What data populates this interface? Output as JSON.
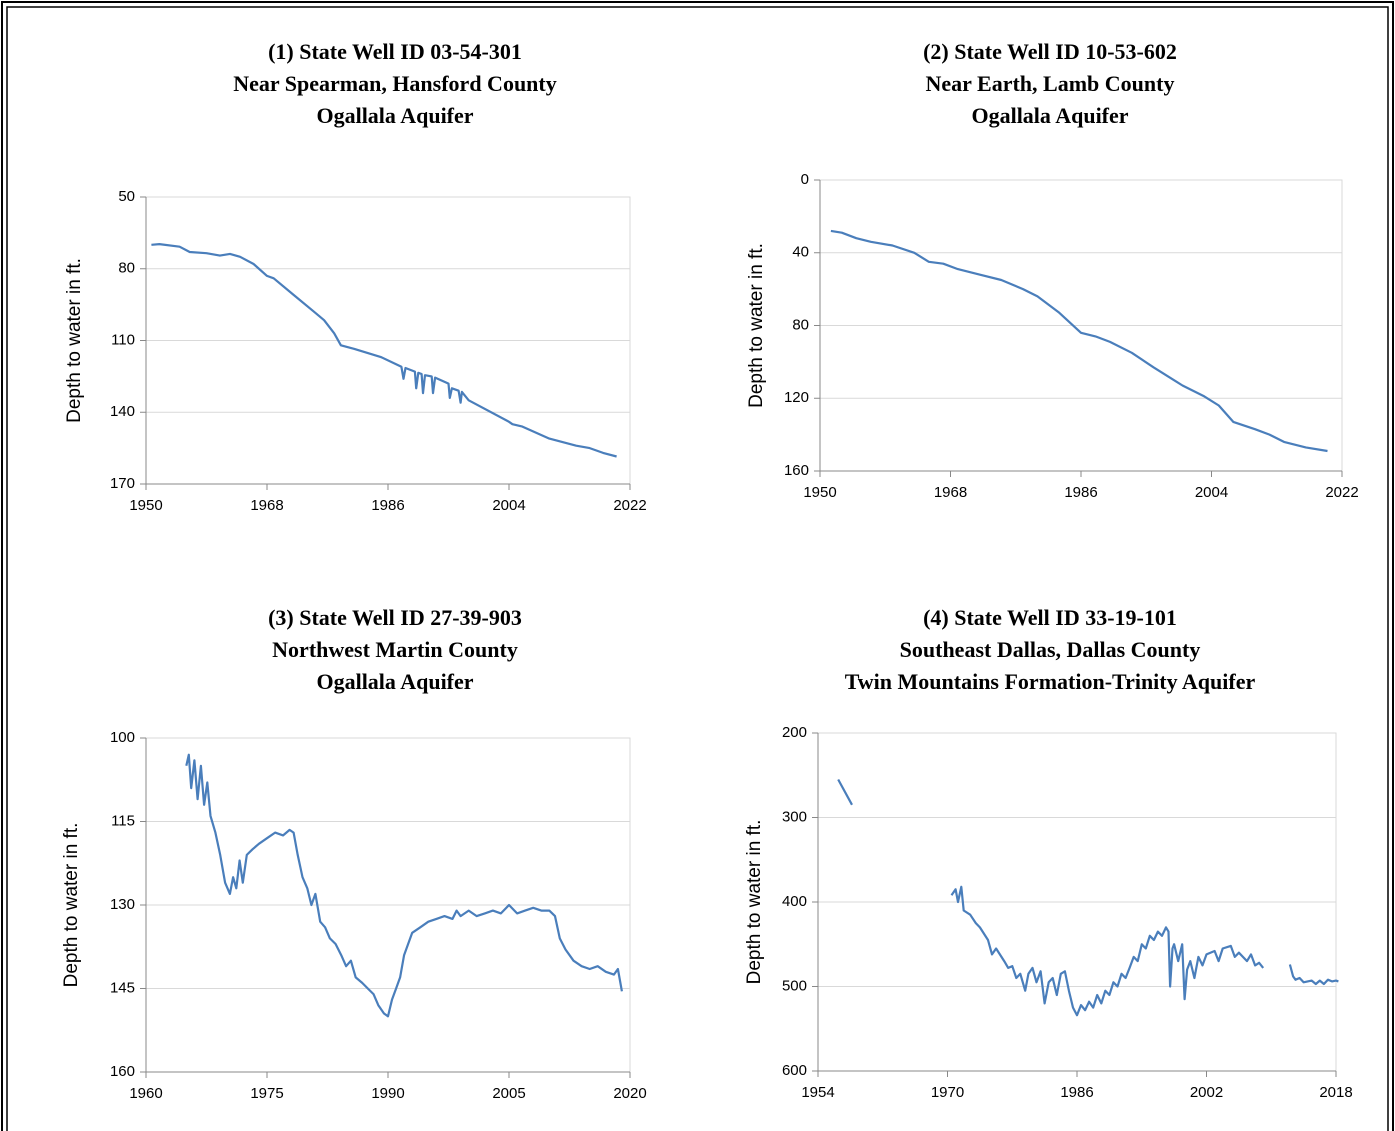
{
  "chart_data": [
    {
      "type": "line",
      "title": [
        "(1) State Well ID 03-54-301",
        "Near Spearman, Hansford County",
        "Ogallala Aquifer"
      ],
      "y_label": "Depth to water in ft.",
      "invert_y": true,
      "grid": true,
      "color": "#4a7ebb",
      "xlim": [
        1950,
        2022
      ],
      "xticks": [
        1950,
        1968,
        1986,
        2004,
        2022
      ],
      "ylim": [
        50,
        170
      ],
      "yticks": [
        50,
        80,
        110,
        140,
        170
      ],
      "x": [
        1950.8,
        1952,
        1955,
        1956.5,
        1959,
        1961,
        1962.5,
        1964,
        1966,
        1968,
        1969,
        1972,
        1975,
        1976.5,
        1978,
        1979,
        1981,
        1985,
        1988,
        1988.3,
        1988.6,
        1990,
        1990.2,
        1990.5,
        1991,
        1991.2,
        1991.5,
        1992.5,
        1992.7,
        1993,
        1995,
        1995.2,
        1995.5,
        1996.5,
        1996.8,
        1997,
        1998,
        2004,
        2004.5,
        2006,
        2010,
        2014,
        2016,
        2018,
        2020
      ],
      "values": [
        70,
        69.7,
        70.8,
        73,
        73.5,
        74.5,
        73.8,
        75,
        78,
        83,
        84,
        91,
        98,
        101.5,
        107,
        112,
        113.5,
        117,
        121,
        126,
        121.5,
        123,
        130,
        123.5,
        124,
        132,
        124.5,
        125,
        132,
        125.5,
        128,
        134,
        130,
        131,
        136,
        131.5,
        135,
        144,
        145,
        146,
        151,
        154,
        155,
        157,
        158.5
      ]
    },
    {
      "type": "line",
      "title": [
        "(2) State Well ID 10-53-602",
        "Near Earth, Lamb County",
        "Ogallala Aquifer"
      ],
      "y_label": "Depth to water in ft.",
      "invert_y": true,
      "grid": true,
      "color": "#4a7ebb",
      "xlim": [
        1950,
        2022
      ],
      "xticks": [
        1950,
        1968,
        1986,
        2004,
        2022
      ],
      "ylim": [
        0,
        160
      ],
      "yticks": [
        0,
        40,
        80,
        120,
        160
      ],
      "x": [
        1951.5,
        1953,
        1955,
        1957,
        1960,
        1963,
        1965,
        1967,
        1969,
        1972,
        1975,
        1978,
        1980,
        1983,
        1986,
        1988,
        1990,
        1993,
        1996,
        2000,
        2003,
        2005,
        2007,
        2010,
        2012,
        2014,
        2017,
        2020
      ],
      "values": [
        28,
        29,
        32,
        34,
        36,
        40,
        45,
        46,
        49,
        52,
        55,
        60,
        64,
        73,
        84,
        86,
        89,
        95,
        103,
        113,
        119,
        124,
        133,
        137,
        140,
        144,
        147,
        149
      ]
    },
    {
      "type": "line",
      "title": [
        "(3) State Well ID 27-39-903",
        "Northwest Martin County",
        "Ogallala Aquifer"
      ],
      "y_label": "Depth to water in ft.",
      "invert_y": true,
      "grid": true,
      "color": "#4a7ebb",
      "xlim": [
        1960,
        2020
      ],
      "xticks": [
        1960,
        1975,
        1990,
        2005,
        2020
      ],
      "ylim": [
        100,
        160
      ],
      "yticks": [
        100,
        115,
        130,
        145,
        160
      ],
      "x": [
        1965,
        1965.3,
        1965.6,
        1966,
        1966.4,
        1966.8,
        1967.2,
        1967.6,
        1968,
        1968.6,
        1969.2,
        1969.8,
        1970.4,
        1970.8,
        1971.2,
        1971.6,
        1972,
        1972.5,
        1973.2,
        1974,
        1975,
        1976,
        1977,
        1977.8,
        1978.3,
        1978.8,
        1979.4,
        1980,
        1980.5,
        1981,
        1981.6,
        1982.2,
        1982.8,
        1983.5,
        1984.2,
        1984.8,
        1985.4,
        1986,
        1986.8,
        1987.5,
        1988.2,
        1988.8,
        1989.5,
        1990,
        1990.5,
        1991,
        1991.5,
        1992,
        1993,
        1994,
        1995,
        1996,
        1997,
        1998,
        1998.5,
        1999,
        2000,
        2001,
        2002,
        2003,
        2004,
        2005,
        2006,
        2007,
        2008,
        2009,
        2010,
        2010.7,
        2011.3,
        2012,
        2013,
        2014,
        2015,
        2016,
        2017,
        2018,
        2018.5,
        2019
      ],
      "values": [
        105,
        103,
        109,
        104,
        111,
        105,
        112,
        108,
        114,
        117,
        121,
        126,
        128,
        125,
        127,
        122,
        126,
        121,
        120,
        119,
        118,
        117,
        117.5,
        116.5,
        117,
        121,
        125,
        127,
        130,
        128,
        133,
        134,
        136,
        137,
        139,
        141,
        140,
        143,
        144,
        145,
        146,
        148,
        149.5,
        150,
        147,
        145,
        143,
        139,
        135,
        134,
        133,
        132.5,
        132,
        132.5,
        131,
        132,
        131,
        132,
        131.5,
        131,
        131.5,
        130,
        131.5,
        131,
        130.5,
        131,
        131,
        132,
        136,
        138,
        140,
        141,
        141.5,
        141,
        142,
        142.5,
        141.5,
        145.5
      ]
    },
    {
      "type": "line",
      "title": [
        "(4) State Well ID 33-19-101",
        "Southeast Dallas, Dallas County",
        "Twin Mountains Formation-Trinity Aquifer"
      ],
      "y_label": "Depth to water in ft.",
      "invert_y": true,
      "grid": true,
      "color": "#4a7ebb",
      "xlim": [
        1954,
        2018
      ],
      "xticks": [
        1954,
        1970,
        1986,
        2002,
        2018
      ],
      "ylim": [
        200,
        600
      ],
      "yticks": [
        200,
        300,
        400,
        500,
        600
      ],
      "x": [
        1956.5,
        1958.2,
        1964,
        1970.5,
        1971,
        1971.3,
        1971.7,
        1972,
        1972.8,
        1973.5,
        1974,
        1975,
        1975.5,
        1976,
        1977,
        1977.5,
        1978,
        1978.5,
        1979,
        1979.6,
        1980,
        1980.5,
        1981,
        1981.5,
        1982,
        1982.5,
        1983,
        1983.5,
        1984,
        1984.5,
        1985,
        1985.5,
        1986,
        1986.5,
        1987,
        1987.5,
        1988,
        1988.5,
        1989,
        1989.5,
        1990,
        1990.5,
        1991,
        1991.5,
        1992,
        1992.5,
        1993,
        1993.5,
        1994,
        1994.5,
        1995,
        1995.5,
        1996,
        1996.5,
        1997,
        1997.3,
        1997.5,
        1997.8,
        1998,
        1998.5,
        1999,
        1999.3,
        1999.6,
        2000,
        2000.5,
        2001,
        2001.5,
        2002,
        2003,
        2003.5,
        2004,
        2005,
        2005.5,
        2006,
        2007,
        2007.5,
        2008,
        2008.5,
        2009,
        2010,
        2012.3,
        2012.7,
        2013,
        2013.5,
        2014,
        2015,
        2015.5,
        2016,
        2016.5,
        2017,
        2017.5,
        2018,
        2018.3
      ],
      "values": [
        255,
        285,
        null,
        392,
        385,
        400,
        382,
        410,
        415,
        425,
        430,
        445,
        462,
        455,
        470,
        478,
        476,
        490,
        485,
        505,
        485,
        478,
        495,
        482,
        520,
        495,
        490,
        510,
        485,
        482,
        505,
        525,
        534,
        522,
        528,
        518,
        525,
        510,
        520,
        505,
        510,
        495,
        500,
        485,
        490,
        478,
        465,
        470,
        450,
        455,
        440,
        445,
        435,
        440,
        430,
        435,
        500,
        455,
        450,
        470,
        450,
        515,
        480,
        470,
        490,
        465,
        475,
        462,
        458,
        470,
        455,
        452,
        465,
        460,
        470,
        462,
        475,
        472,
        478,
        null,
        474,
        488,
        492,
        490,
        495,
        493,
        497,
        493,
        497,
        492,
        494,
        493,
        494
      ]
    }
  ]
}
